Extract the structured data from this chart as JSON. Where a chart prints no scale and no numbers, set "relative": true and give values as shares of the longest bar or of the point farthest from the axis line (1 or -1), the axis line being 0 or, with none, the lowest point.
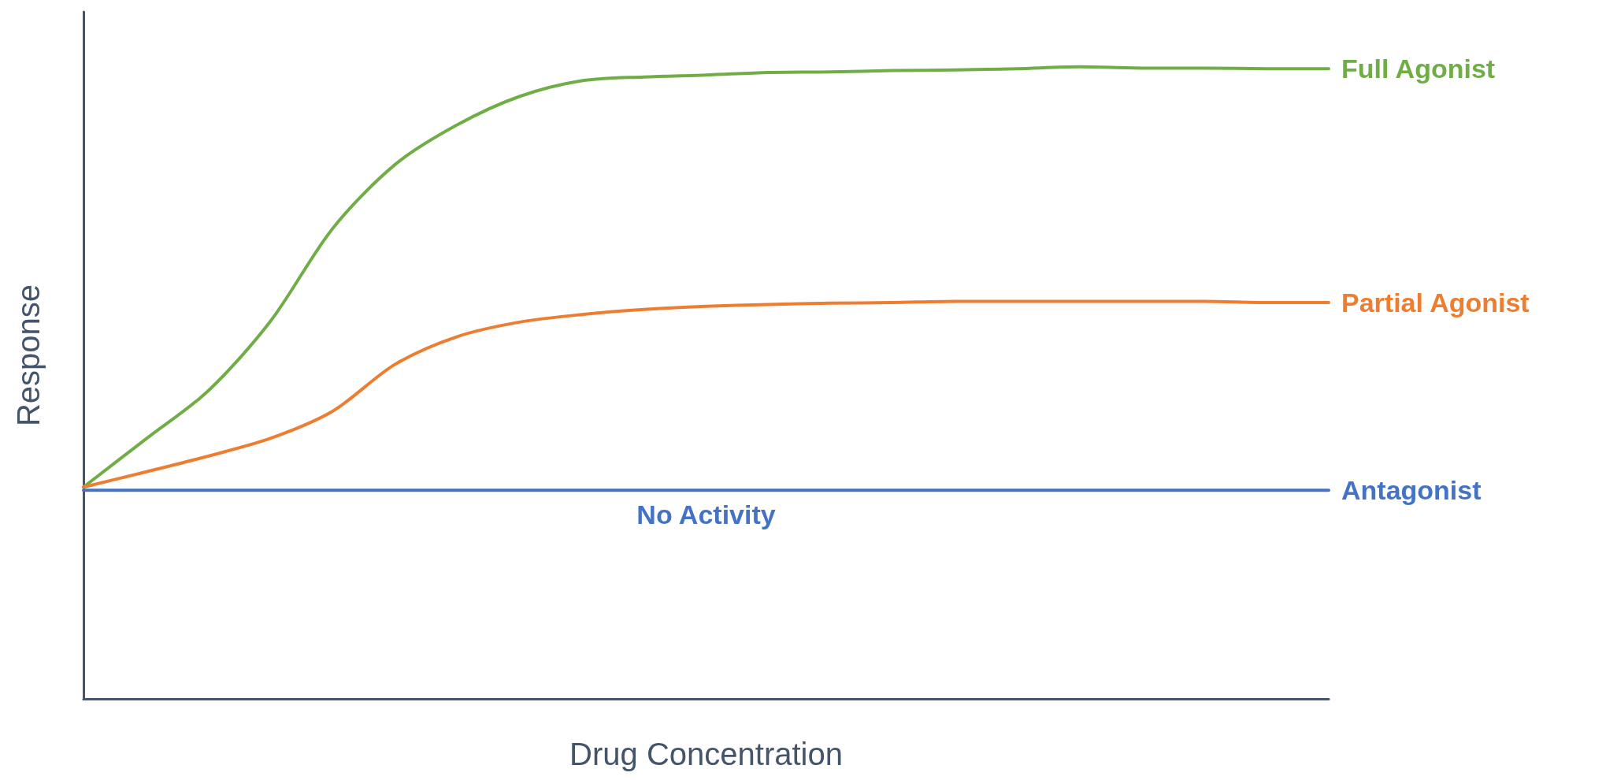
{
  "chart_data": {
    "type": "line",
    "relative": true,
    "xlabel": "Drug Concentration",
    "ylabel": "Response",
    "marker": "none",
    "annotations": [
      "No Activity"
    ],
    "categories": [
      null,
      null,
      null,
      null,
      null,
      null,
      null,
      null,
      null,
      null,
      null,
      null,
      null,
      null,
      null,
      null,
      null,
      null,
      null,
      null,
      null
    ],
    "series": [
      {
        "name": "Full Agonist",
        "color": "#70ad47",
        "values": [
          0.335,
          0.411,
          0.487,
          0.597,
          0.744,
          0.845,
          0.908,
          0.953,
          0.978,
          0.984,
          0.987,
          0.991,
          0.992,
          0.994,
          0.995,
          0.997,
          1,
          0.998,
          0.998,
          0.997,
          0.997
        ]
      },
      {
        "name": "Partial Agonist",
        "color": "#ed7d31",
        "values": [
          0.335,
          0.359,
          0.384,
          0.412,
          0.455,
          0.529,
          0.573,
          0.596,
          0.608,
          0.616,
          0.621,
          0.624,
          0.626,
          0.627,
          0.629,
          0.629,
          0.629,
          0.629,
          0.629,
          0.627,
          0.627
        ]
      },
      {
        "name": "Antagonist",
        "color": "#4472c4",
        "values": [
          0.33,
          0.33,
          0.33,
          0.33,
          0.33,
          0.33,
          0.33,
          0.33,
          0.33,
          0.33,
          0.33,
          0.33,
          0.33,
          0.33,
          0.33,
          0.33,
          0.33,
          0.33,
          0.33,
          0.33,
          0.33
        ]
      }
    ]
  }
}
